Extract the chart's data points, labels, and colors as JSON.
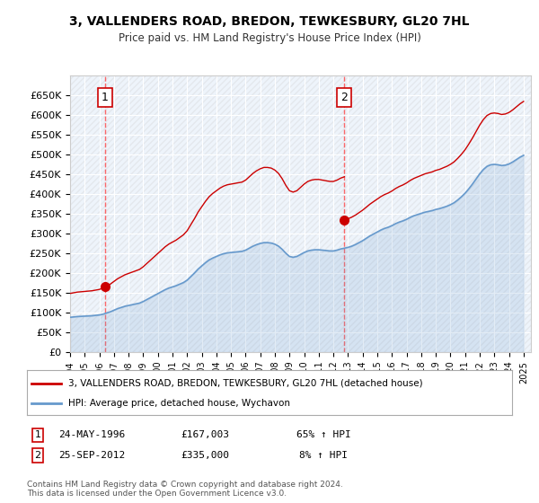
{
  "title": "3, VALLENDERS ROAD, BREDON, TEWKESBURY, GL20 7HL",
  "subtitle": "Price paid vs. HM Land Registry's House Price Index (HPI)",
  "legend_line1": "3, VALLENDERS ROAD, BREDON, TEWKESBURY, GL20 7HL (detached house)",
  "legend_line2": "HPI: Average price, detached house, Wychavon",
  "transaction1_label": "1",
  "transaction1_date": "24-MAY-1996",
  "transaction1_price": "£167,003",
  "transaction1_hpi": "65% ↑ HPI",
  "transaction2_label": "2",
  "transaction2_date": "25-SEP-2012",
  "transaction2_price": "£335,000",
  "transaction2_hpi": "8% ↑ HPI",
  "footer": "Contains HM Land Registry data © Crown copyright and database right 2024.\nThis data is licensed under the Open Government Licence v3.0.",
  "price_color": "#cc0000",
  "hpi_color": "#6699cc",
  "background_color": "#ffffff",
  "plot_bg_color": "#eef4fb",
  "marker_color": "#cc0000",
  "dashed_line_color": "#ff4444",
  "ylim": [
    0,
    700000
  ],
  "yticks": [
    0,
    50000,
    100000,
    150000,
    200000,
    250000,
    300000,
    350000,
    400000,
    450000,
    500000,
    550000,
    600000,
    650000
  ],
  "xlim_start": 1994.0,
  "xlim_end": 2025.5,
  "transaction1_x": 1996.39,
  "transaction1_y": 167003,
  "transaction2_x": 2012.73,
  "transaction2_y": 335000,
  "hpi_years": [
    1994.0,
    1994.25,
    1994.5,
    1994.75,
    1995.0,
    1995.25,
    1995.5,
    1995.75,
    1996.0,
    1996.25,
    1996.5,
    1996.75,
    1997.0,
    1997.25,
    1997.5,
    1997.75,
    1998.0,
    1998.25,
    1998.5,
    1998.75,
    1999.0,
    1999.25,
    1999.5,
    1999.75,
    2000.0,
    2000.25,
    2000.5,
    2000.75,
    2001.0,
    2001.25,
    2001.5,
    2001.75,
    2002.0,
    2002.25,
    2002.5,
    2002.75,
    2003.0,
    2003.25,
    2003.5,
    2003.75,
    2004.0,
    2004.25,
    2004.5,
    2004.75,
    2005.0,
    2005.25,
    2005.5,
    2005.75,
    2006.0,
    2006.25,
    2006.5,
    2006.75,
    2007.0,
    2007.25,
    2007.5,
    2007.75,
    2008.0,
    2008.25,
    2008.5,
    2008.75,
    2009.0,
    2009.25,
    2009.5,
    2009.75,
    2010.0,
    2010.25,
    2010.5,
    2010.75,
    2011.0,
    2011.25,
    2011.5,
    2011.75,
    2012.0,
    2012.25,
    2012.5,
    2012.75,
    2013.0,
    2013.25,
    2013.5,
    2013.75,
    2014.0,
    2014.25,
    2014.5,
    2014.75,
    2015.0,
    2015.25,
    2015.5,
    2015.75,
    2016.0,
    2016.25,
    2016.5,
    2016.75,
    2017.0,
    2017.25,
    2017.5,
    2017.75,
    2018.0,
    2018.25,
    2018.5,
    2018.75,
    2019.0,
    2019.25,
    2019.5,
    2019.75,
    2020.0,
    2020.25,
    2020.5,
    2020.75,
    2021.0,
    2021.25,
    2021.5,
    2021.75,
    2022.0,
    2022.25,
    2022.5,
    2022.75,
    2023.0,
    2023.25,
    2023.5,
    2023.75,
    2024.0,
    2024.25,
    2024.5,
    2024.75,
    2025.0
  ],
  "hpi_values": [
    88000,
    89000,
    90000,
    90500,
    91000,
    91500,
    92000,
    93000,
    94000,
    96000,
    99000,
    102000,
    106000,
    110000,
    113000,
    116000,
    118000,
    120000,
    122000,
    124000,
    128000,
    133000,
    138000,
    143000,
    148000,
    153000,
    158000,
    162000,
    165000,
    168000,
    172000,
    176000,
    182000,
    191000,
    200000,
    210000,
    218000,
    226000,
    233000,
    238000,
    242000,
    246000,
    249000,
    251000,
    252000,
    253000,
    254000,
    255000,
    258000,
    263000,
    268000,
    272000,
    275000,
    277000,
    277000,
    276000,
    273000,
    268000,
    260000,
    250000,
    242000,
    240000,
    242000,
    247000,
    252000,
    256000,
    258000,
    259000,
    259000,
    258000,
    257000,
    256000,
    256000,
    258000,
    261000,
    263000,
    265000,
    268000,
    272000,
    277000,
    282000,
    288000,
    294000,
    299000,
    304000,
    309000,
    313000,
    316000,
    320000,
    325000,
    329000,
    332000,
    336000,
    341000,
    345000,
    348000,
    351000,
    354000,
    356000,
    358000,
    361000,
    363000,
    366000,
    369000,
    373000,
    378000,
    385000,
    393000,
    402000,
    413000,
    425000,
    438000,
    451000,
    462000,
    470000,
    474000,
    475000,
    474000,
    472000,
    473000,
    476000,
    481000,
    487000,
    493000,
    498000
  ],
  "price_years": [
    1994.0,
    1994.25,
    1994.5,
    1994.75,
    1995.0,
    1995.25,
    1995.5,
    1995.75,
    1996.0,
    1996.25,
    1996.5,
    1996.75,
    1997.0,
    1997.25,
    1997.5,
    1997.75,
    1998.0,
    1998.25,
    1998.5,
    1998.75,
    1999.0,
    1999.25,
    1999.5,
    1999.75,
    2000.0,
    2000.25,
    2000.5,
    2000.75,
    2001.0,
    2001.25,
    2001.5,
    2001.75,
    2002.0,
    2002.25,
    2002.5,
    2002.75,
    2003.0,
    2003.25,
    2003.5,
    2003.75,
    2004.0,
    2004.25,
    2004.5,
    2004.75,
    2005.0,
    2005.25,
    2005.5,
    2005.75,
    2006.0,
    2006.25,
    2006.5,
    2006.75,
    2007.0,
    2007.25,
    2007.5,
    2007.75,
    2008.0,
    2008.25,
    2008.5,
    2008.75,
    2009.0,
    2009.25,
    2009.5,
    2009.75,
    2010.0,
    2010.25,
    2010.5,
    2010.75,
    2011.0,
    2011.25,
    2011.5,
    2011.75,
    2012.0,
    2012.25,
    2012.5,
    2012.75,
    2013.0,
    2013.25,
    2013.5,
    2013.75,
    2014.0,
    2014.25,
    2014.5,
    2014.75,
    2015.0,
    2015.25,
    2015.5,
    2015.75,
    2016.0,
    2016.25,
    2016.5,
    2016.75,
    2017.0,
    2017.25,
    2017.5,
    2017.75,
    2018.0,
    2018.25,
    2018.5,
    2018.75,
    2019.0,
    2019.25,
    2019.5,
    2019.75,
    2020.0,
    2020.25,
    2020.5,
    2020.75,
    2021.0,
    2021.25,
    2021.5,
    2021.75,
    2022.0,
    2022.25,
    2022.5,
    2022.75,
    2023.0,
    2023.25,
    2023.5,
    2023.75,
    2024.0,
    2024.25,
    2024.5,
    2024.75,
    2025.0
  ],
  "price_values": [
    null,
    null,
    null,
    null,
    null,
    null,
    null,
    null,
    null,
    null,
    167003,
    null,
    null,
    null,
    null,
    null,
    null,
    null,
    null,
    null,
    null,
    null,
    null,
    null,
    null,
    null,
    null,
    null,
    null,
    null,
    null,
    null,
    null,
    null,
    null,
    null,
    null,
    null,
    null,
    null,
    null,
    null,
    null,
    null,
    null,
    null,
    null,
    null,
    null,
    null,
    null,
    null,
    null,
    null,
    null,
    null,
    null,
    null,
    null,
    null,
    null,
    null,
    null,
    null,
    null,
    null,
    null,
    null,
    null,
    null,
    null,
    null,
    null,
    null,
    335000,
    null,
    null,
    null,
    null,
    null,
    null,
    null,
    null,
    null,
    null,
    null,
    null,
    null,
    null,
    null,
    null,
    null,
    null,
    null,
    null,
    null,
    null,
    null,
    null,
    null,
    null,
    null,
    null,
    null,
    null,
    null,
    null,
    null,
    null,
    null,
    null,
    null,
    null,
    null,
    null,
    null,
    null,
    null,
    null,
    null,
    null,
    null,
    null,
    null,
    null
  ]
}
